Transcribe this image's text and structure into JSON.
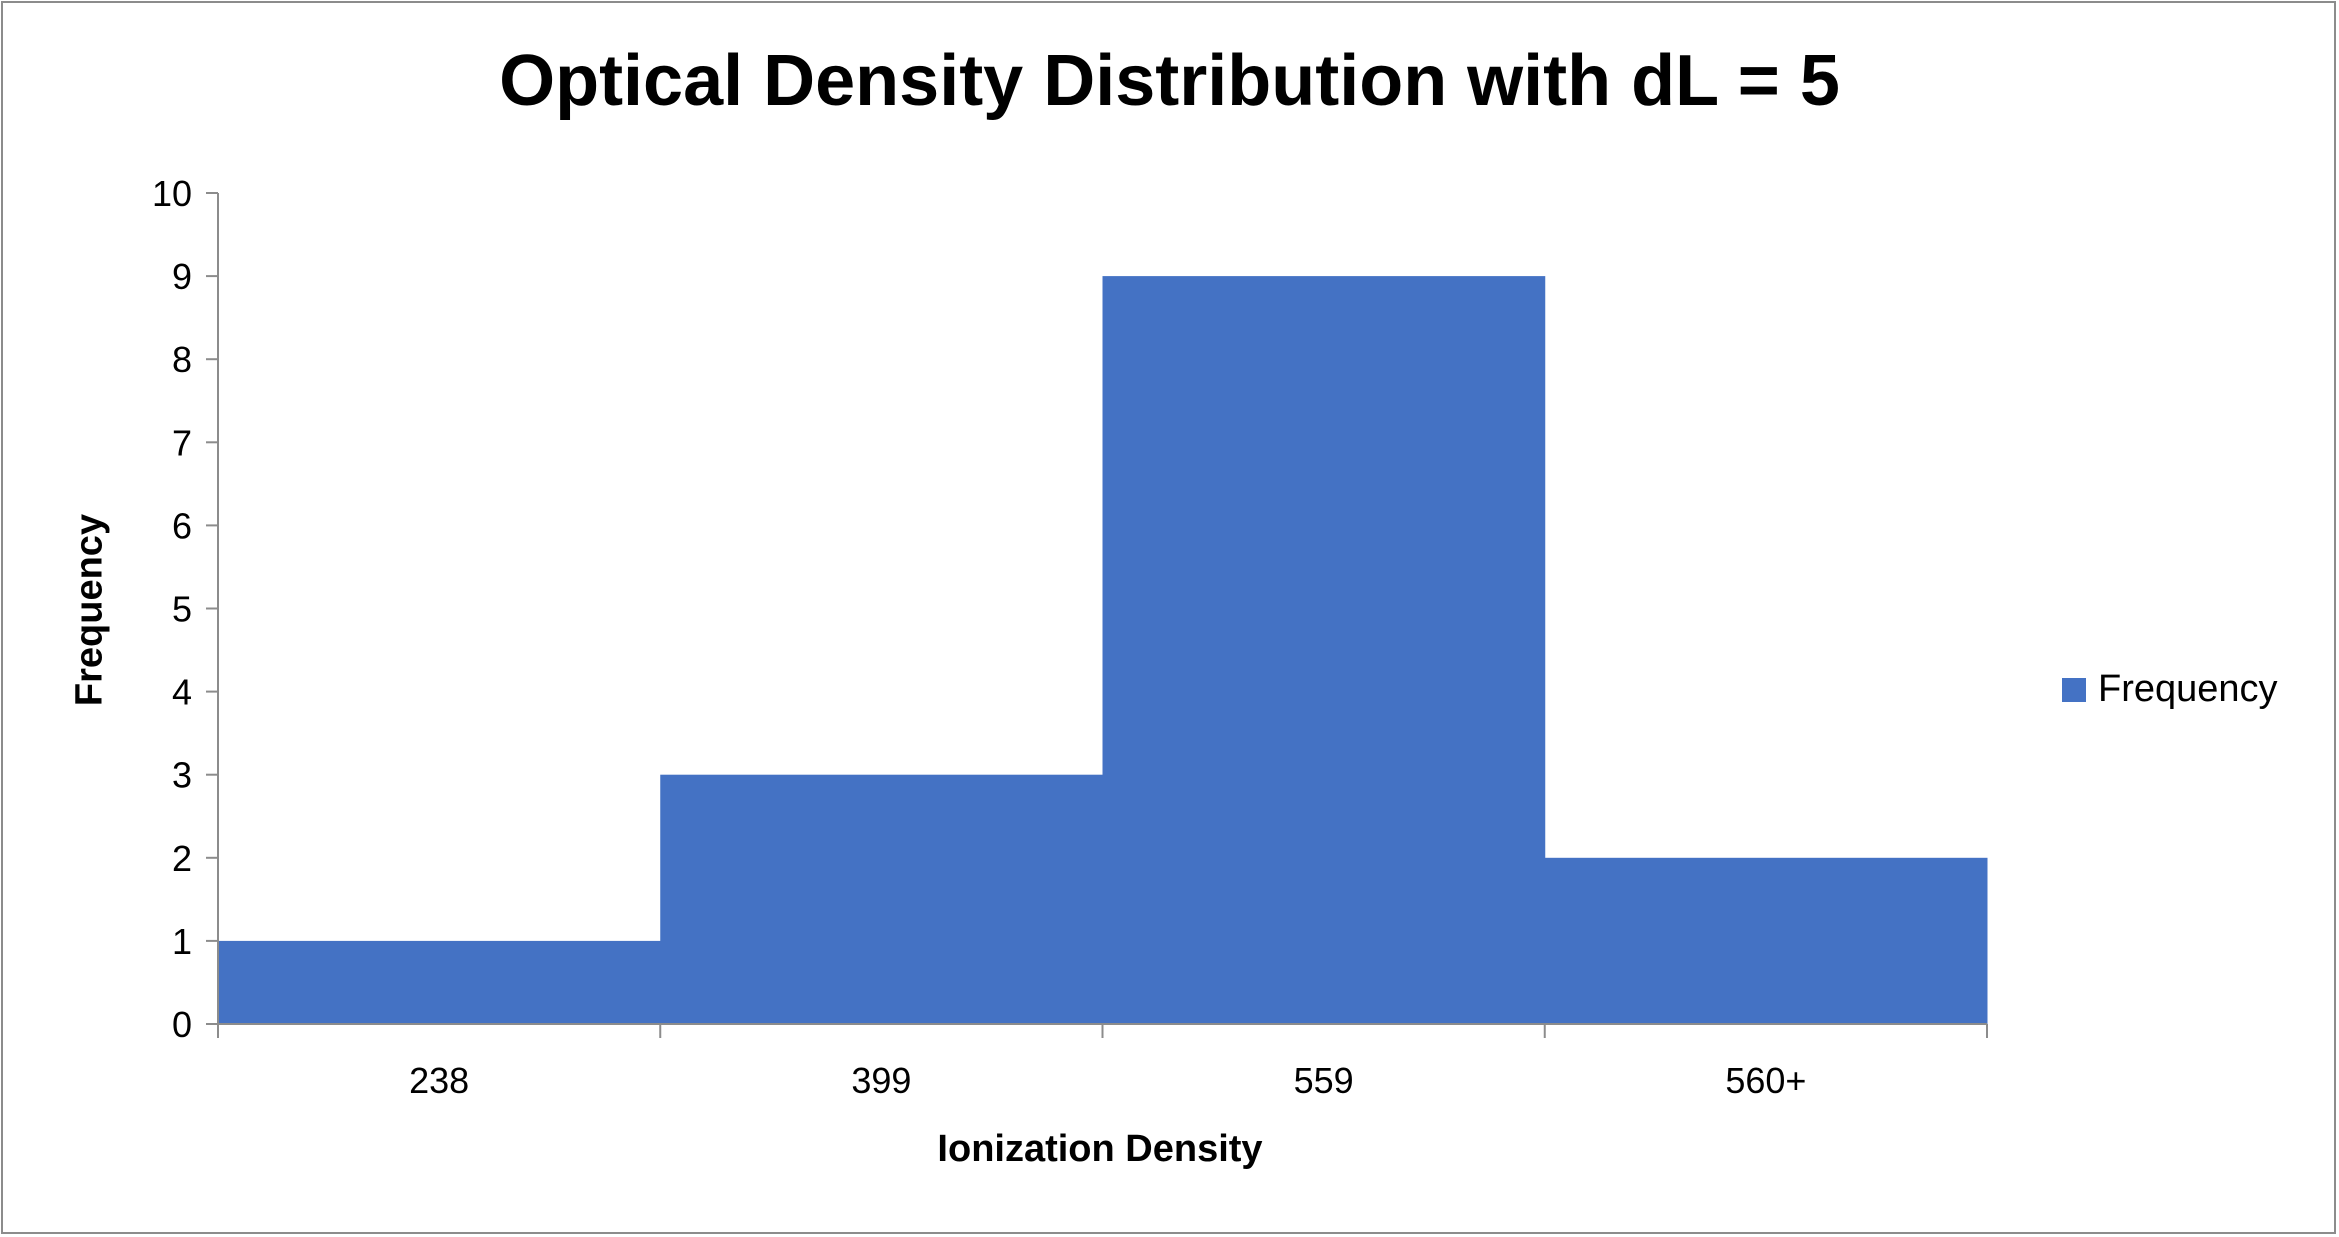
{
  "chart_data": {
    "type": "bar",
    "title": "Optical Density Distribution with dL = 5",
    "xlabel": "Ionization Density",
    "ylabel": "Frequency",
    "categories": [
      "238",
      "399",
      "559",
      "560+"
    ],
    "series": [
      {
        "name": "Frequency",
        "values": [
          1,
          3,
          9,
          2
        ],
        "color": "#4472c4"
      }
    ],
    "ylim": [
      0,
      10
    ],
    "yticks": [
      "0",
      "1",
      "2",
      "3",
      "4",
      "5",
      "6",
      "7",
      "8",
      "9",
      "10"
    ],
    "grid": false,
    "legend": "right"
  }
}
